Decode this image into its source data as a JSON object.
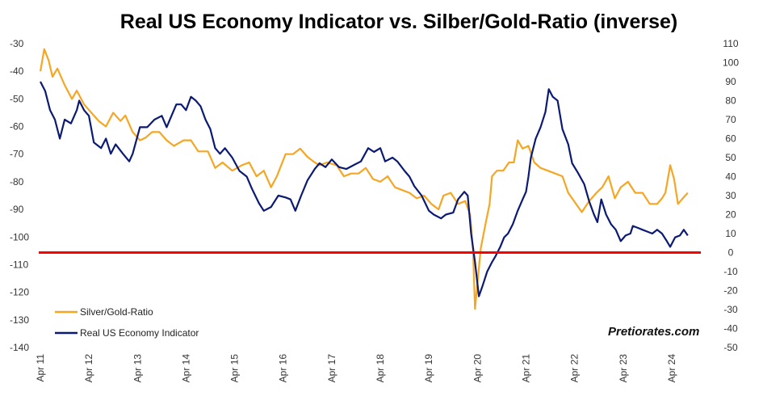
{
  "chart_data": {
    "type": "line",
    "title": "Real US Economy Indicator vs. Silber/Gold-Ratio (inverse)",
    "xlabel": "",
    "ylabel": "",
    "x_tick_labels": [
      "Apr 11",
      "Apr 12",
      "Apr 13",
      "Apr 14",
      "Apr 15",
      "Apr 16",
      "Apr 17",
      "Apr 18",
      "Apr 19",
      "Apr 20",
      "Apr 21",
      "Apr 22",
      "Apr 23",
      "Apr 24"
    ],
    "x_range": [
      2011.25,
      2024.85
    ],
    "y_left": {
      "range": [
        -140,
        -30
      ],
      "ticks": [
        "-30",
        "-40",
        "-50",
        "-60",
        "-70",
        "-80",
        "-90",
        "-100",
        "-110",
        "-120",
        "-130",
        "-140"
      ]
    },
    "y_right": {
      "range": [
        -50,
        110
      ],
      "ticks": [
        "110",
        "100",
        "90",
        "80",
        "70",
        "60",
        "50",
        "40",
        "30",
        "20",
        "10",
        "0",
        "-10",
        "-20",
        "-30",
        "-40",
        "-50"
      ]
    },
    "reference_line": {
      "axis": "right",
      "value": 0,
      "color": "#ff0000"
    },
    "grid": false,
    "legend_position": "bottom-left",
    "series": [
      {
        "name": "Silver/Gold-Ratio",
        "axis": "left",
        "color": "#f5a623",
        "points": [
          [
            2011.25,
            -40
          ],
          [
            2011.33,
            -32
          ],
          [
            2011.42,
            -36
          ],
          [
            2011.5,
            -42
          ],
          [
            2011.6,
            -39
          ],
          [
            2011.75,
            -45
          ],
          [
            2011.9,
            -50
          ],
          [
            2012.0,
            -47
          ],
          [
            2012.15,
            -52
          ],
          [
            2012.3,
            -55
          ],
          [
            2012.45,
            -58
          ],
          [
            2012.6,
            -60
          ],
          [
            2012.75,
            -55
          ],
          [
            2012.9,
            -58
          ],
          [
            2013.0,
            -56
          ],
          [
            2013.15,
            -62
          ],
          [
            2013.3,
            -65
          ],
          [
            2013.42,
            -64
          ],
          [
            2013.55,
            -62
          ],
          [
            2013.7,
            -62
          ],
          [
            2013.85,
            -65
          ],
          [
            2014.0,
            -67
          ],
          [
            2014.2,
            -65
          ],
          [
            2014.35,
            -65
          ],
          [
            2014.5,
            -69
          ],
          [
            2014.7,
            -69
          ],
          [
            2014.85,
            -75
          ],
          [
            2015.0,
            -73
          ],
          [
            2015.2,
            -76
          ],
          [
            2015.4,
            -74
          ],
          [
            2015.55,
            -73
          ],
          [
            2015.7,
            -78
          ],
          [
            2015.85,
            -76
          ],
          [
            2016.0,
            -82
          ],
          [
            2016.12,
            -78
          ],
          [
            2016.3,
            -70
          ],
          [
            2016.45,
            -70
          ],
          [
            2016.6,
            -68
          ],
          [
            2016.75,
            -71
          ],
          [
            2016.9,
            -73
          ],
          [
            2017.0,
            -74
          ],
          [
            2017.15,
            -73
          ],
          [
            2017.35,
            -74
          ],
          [
            2017.5,
            -78
          ],
          [
            2017.65,
            -77
          ],
          [
            2017.8,
            -77
          ],
          [
            2017.95,
            -75
          ],
          [
            2018.1,
            -79
          ],
          [
            2018.25,
            -80
          ],
          [
            2018.4,
            -78
          ],
          [
            2018.55,
            -82
          ],
          [
            2018.7,
            -83
          ],
          [
            2018.85,
            -84
          ],
          [
            2019.0,
            -86
          ],
          [
            2019.15,
            -85
          ],
          [
            2019.3,
            -88
          ],
          [
            2019.45,
            -90
          ],
          [
            2019.55,
            -85
          ],
          [
            2019.7,
            -84
          ],
          [
            2019.85,
            -88
          ],
          [
            2020.0,
            -87
          ],
          [
            2020.1,
            -92
          ],
          [
            2020.16,
            -105
          ],
          [
            2020.2,
            -126
          ],
          [
            2020.26,
            -115
          ],
          [
            2020.32,
            -104
          ],
          [
            2020.42,
            -95
          ],
          [
            2020.5,
            -88
          ],
          [
            2020.55,
            -78
          ],
          [
            2020.65,
            -76
          ],
          [
            2020.78,
            -76
          ],
          [
            2020.9,
            -73
          ],
          [
            2021.0,
            -73
          ],
          [
            2021.08,
            -65
          ],
          [
            2021.18,
            -68
          ],
          [
            2021.3,
            -67
          ],
          [
            2021.42,
            -73
          ],
          [
            2021.55,
            -75
          ],
          [
            2021.7,
            -76
          ],
          [
            2021.85,
            -77
          ],
          [
            2022.0,
            -78
          ],
          [
            2022.12,
            -84
          ],
          [
            2022.28,
            -88
          ],
          [
            2022.4,
            -91
          ],
          [
            2022.55,
            -87
          ],
          [
            2022.7,
            -84
          ],
          [
            2022.82,
            -82
          ],
          [
            2022.95,
            -78
          ],
          [
            2023.08,
            -86
          ],
          [
            2023.2,
            -82
          ],
          [
            2023.35,
            -80
          ],
          [
            2023.5,
            -84
          ],
          [
            2023.65,
            -84
          ],
          [
            2023.8,
            -88
          ],
          [
            2023.95,
            -88
          ],
          [
            2024.05,
            -86
          ],
          [
            2024.12,
            -84
          ],
          [
            2024.22,
            -74
          ],
          [
            2024.3,
            -79
          ],
          [
            2024.38,
            -88
          ],
          [
            2024.48,
            -86
          ],
          [
            2024.58,
            -84
          ]
        ]
      },
      {
        "name": "Real US Economy Indicator",
        "axis": "right",
        "color": "#0b1a73",
        "points": [
          [
            2011.25,
            90
          ],
          [
            2011.35,
            85
          ],
          [
            2011.45,
            75
          ],
          [
            2011.55,
            70
          ],
          [
            2011.65,
            60
          ],
          [
            2011.75,
            70
          ],
          [
            2011.88,
            68
          ],
          [
            2012.0,
            75
          ],
          [
            2012.05,
            80
          ],
          [
            2012.15,
            75
          ],
          [
            2012.25,
            72
          ],
          [
            2012.35,
            58
          ],
          [
            2012.5,
            55
          ],
          [
            2012.6,
            60
          ],
          [
            2012.7,
            52
          ],
          [
            2012.8,
            57
          ],
          [
            2012.95,
            52
          ],
          [
            2013.08,
            48
          ],
          [
            2013.15,
            52
          ],
          [
            2013.3,
            66
          ],
          [
            2013.45,
            66
          ],
          [
            2013.6,
            70
          ],
          [
            2013.75,
            72
          ],
          [
            2013.85,
            66
          ],
          [
            2013.95,
            72
          ],
          [
            2014.05,
            78
          ],
          [
            2014.15,
            78
          ],
          [
            2014.25,
            75
          ],
          [
            2014.35,
            82
          ],
          [
            2014.45,
            80
          ],
          [
            2014.55,
            77
          ],
          [
            2014.65,
            70
          ],
          [
            2014.75,
            65
          ],
          [
            2014.85,
            55
          ],
          [
            2014.95,
            52
          ],
          [
            2015.05,
            55
          ],
          [
            2015.2,
            50
          ],
          [
            2015.35,
            43
          ],
          [
            2015.5,
            40
          ],
          [
            2015.6,
            34
          ],
          [
            2015.75,
            26
          ],
          [
            2015.85,
            22
          ],
          [
            2016.0,
            24
          ],
          [
            2016.15,
            30
          ],
          [
            2016.3,
            29
          ],
          [
            2016.4,
            28
          ],
          [
            2016.5,
            22
          ],
          [
            2016.62,
            30
          ],
          [
            2016.75,
            38
          ],
          [
            2016.9,
            44
          ],
          [
            2017.0,
            47
          ],
          [
            2017.12,
            45
          ],
          [
            2017.25,
            49
          ],
          [
            2017.4,
            45
          ],
          [
            2017.55,
            44
          ],
          [
            2017.7,
            46
          ],
          [
            2017.85,
            48
          ],
          [
            2018.0,
            55
          ],
          [
            2018.12,
            53
          ],
          [
            2018.25,
            55
          ],
          [
            2018.35,
            48
          ],
          [
            2018.5,
            50
          ],
          [
            2018.6,
            48
          ],
          [
            2018.75,
            43
          ],
          [
            2018.85,
            40
          ],
          [
            2018.95,
            35
          ],
          [
            2019.1,
            30
          ],
          [
            2019.25,
            22
          ],
          [
            2019.35,
            20
          ],
          [
            2019.5,
            18
          ],
          [
            2019.6,
            20
          ],
          [
            2019.75,
            21
          ],
          [
            2019.85,
            28
          ],
          [
            2019.98,
            32
          ],
          [
            2020.05,
            30
          ],
          [
            2020.12,
            10
          ],
          [
            2020.2,
            -5
          ],
          [
            2020.28,
            -23
          ],
          [
            2020.35,
            -18
          ],
          [
            2020.45,
            -10
          ],
          [
            2020.55,
            -5
          ],
          [
            2020.62,
            -2
          ],
          [
            2020.72,
            3
          ],
          [
            2020.8,
            8
          ],
          [
            2020.88,
            10
          ],
          [
            2020.98,
            15
          ],
          [
            2021.08,
            22
          ],
          [
            2021.18,
            28
          ],
          [
            2021.25,
            32
          ],
          [
            2021.3,
            40
          ],
          [
            2021.35,
            50
          ],
          [
            2021.45,
            60
          ],
          [
            2021.55,
            66
          ],
          [
            2021.65,
            74
          ],
          [
            2021.72,
            86
          ],
          [
            2021.8,
            82
          ],
          [
            2021.9,
            80
          ],
          [
            2022.0,
            65
          ],
          [
            2022.12,
            57
          ],
          [
            2022.2,
            47
          ],
          [
            2022.32,
            42
          ],
          [
            2022.45,
            36
          ],
          [
            2022.55,
            27
          ],
          [
            2022.65,
            20
          ],
          [
            2022.72,
            16
          ],
          [
            2022.8,
            28
          ],
          [
            2022.9,
            20
          ],
          [
            2023.0,
            15
          ],
          [
            2023.1,
            12
          ],
          [
            2023.2,
            6
          ],
          [
            2023.3,
            9
          ],
          [
            2023.4,
            10
          ],
          [
            2023.45,
            14
          ],
          [
            2023.55,
            13
          ],
          [
            2023.65,
            12
          ],
          [
            2023.75,
            11
          ],
          [
            2023.85,
            10
          ],
          [
            2023.95,
            12
          ],
          [
            2024.05,
            10
          ],
          [
            2024.15,
            6
          ],
          [
            2024.22,
            3
          ],
          [
            2024.32,
            8
          ],
          [
            2024.42,
            9
          ],
          [
            2024.5,
            12
          ],
          [
            2024.58,
            9
          ]
        ]
      }
    ]
  },
  "brand": "Pretiorates.com"
}
